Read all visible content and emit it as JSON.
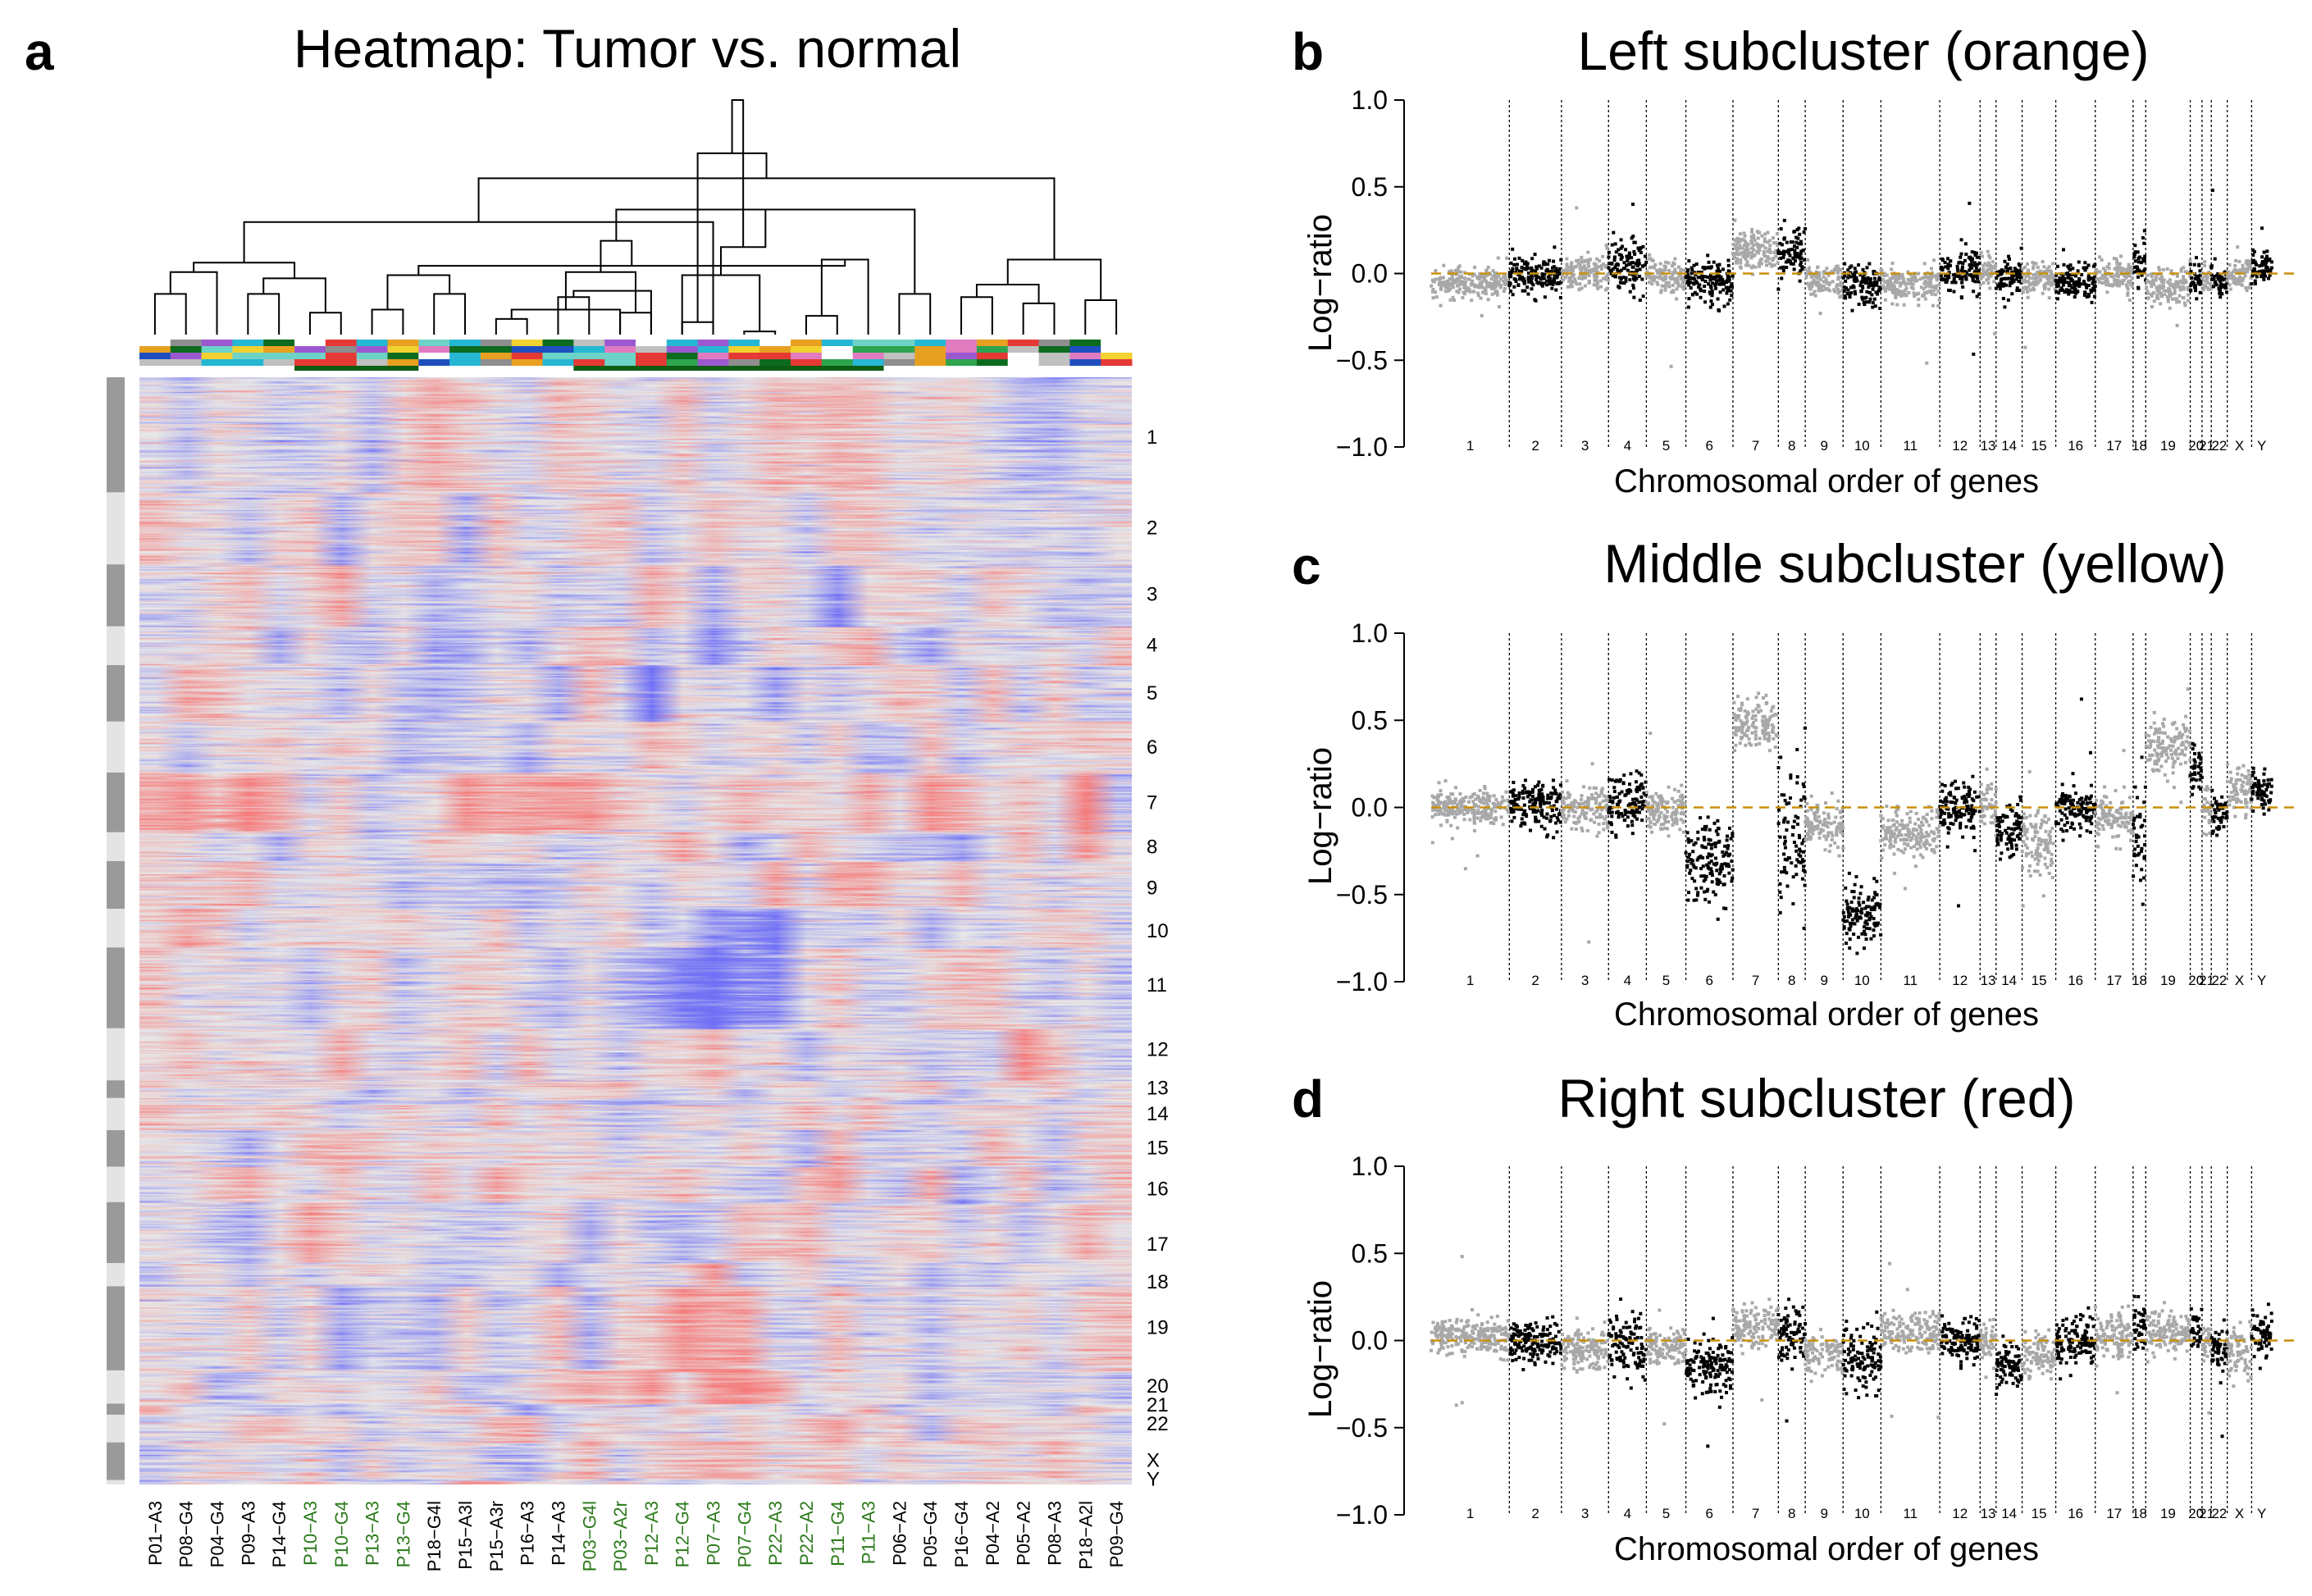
{
  "panels": {
    "a": {
      "letter": "a",
      "title": "Heatmap: Tumor vs. normal"
    },
    "b": {
      "letter": "b",
      "title": "Left subcluster (orange)"
    },
    "c": {
      "letter": "c",
      "title": "Middle subcluster (yellow)"
    },
    "d": {
      "letter": "d",
      "title": "Right subcluster (red)"
    }
  },
  "colors": {
    "gray_point": "#a8a8a8",
    "black_point": "#000000",
    "baseline": "#c8900a",
    "heat_blue": "#6f6fe6",
    "heat_red": "#e07070",
    "heat_mid": "#e8e8e8",
    "green_label": "#2a7a1a"
  },
  "chart_data": [
    {
      "type": "heatmap",
      "panel": "a",
      "title": "Heatmap: Tumor vs. normal",
      "samples": [
        {
          "name": "P01−A3",
          "green": false
        },
        {
          "name": "P08−G4",
          "green": false
        },
        {
          "name": "P04−G4",
          "green": false
        },
        {
          "name": "P09−A3",
          "green": false
        },
        {
          "name": "P14−G4",
          "green": false
        },
        {
          "name": "P10−A3",
          "green": true
        },
        {
          "name": "P10−G4",
          "green": true
        },
        {
          "name": "P13−A3",
          "green": true
        },
        {
          "name": "P13−G4",
          "green": true
        },
        {
          "name": "P18−G4l",
          "green": false
        },
        {
          "name": "P15−A3l",
          "green": false
        },
        {
          "name": "P15−A3r",
          "green": false
        },
        {
          "name": "P16−A3",
          "green": false
        },
        {
          "name": "P14−A3",
          "green": false
        },
        {
          "name": "P03−G4l",
          "green": true
        },
        {
          "name": "P03−A2r",
          "green": true
        },
        {
          "name": "P12−A3",
          "green": true
        },
        {
          "name": "P12−G4",
          "green": true
        },
        {
          "name": "P07−A3",
          "green": true
        },
        {
          "name": "P07−G4",
          "green": true
        },
        {
          "name": "P22−A3",
          "green": true
        },
        {
          "name": "P22−A2",
          "green": true
        },
        {
          "name": "P11−G4",
          "green": true
        },
        {
          "name": "P11−A3",
          "green": true
        },
        {
          "name": "P06−A2",
          "green": false
        },
        {
          "name": "P05−G4",
          "green": false
        },
        {
          "name": "P16−G4",
          "green": false
        },
        {
          "name": "P04−A2",
          "green": false
        },
        {
          "name": "P05−A2",
          "green": false
        },
        {
          "name": "P08−A3",
          "green": false
        },
        {
          "name": "P18−A2l",
          "green": false
        },
        {
          "name": "P09−G4",
          "green": false
        }
      ],
      "row_chromosome_labels": [
        "1",
        "2",
        "3",
        "4",
        "5",
        "6",
        "7",
        "8",
        "9",
        "10",
        "11",
        "12",
        "13",
        "14",
        "15",
        "16",
        "17",
        "18",
        "19",
        "20",
        "21",
        "22",
        "X",
        "Y"
      ],
      "row_label_fraction": [
        0.054,
        0.136,
        0.196,
        0.242,
        0.285,
        0.334,
        0.384,
        0.424,
        0.461,
        0.5,
        0.549,
        0.607,
        0.642,
        0.665,
        0.696,
        0.733,
        0.783,
        0.817,
        0.858,
        0.911,
        0.928,
        0.945,
        0.978,
        0.995
      ],
      "chromosome_blocks": [
        [
          0.0,
          0.104
        ],
        [
          0.104,
          0.169
        ],
        [
          0.169,
          0.225
        ],
        [
          0.225,
          0.26
        ],
        [
          0.26,
          0.311
        ],
        [
          0.311,
          0.357
        ],
        [
          0.357,
          0.411
        ],
        [
          0.411,
          0.437
        ],
        [
          0.437,
          0.48
        ],
        [
          0.48,
          0.515
        ],
        [
          0.515,
          0.588
        ],
        [
          0.588,
          0.635
        ],
        [
          0.635,
          0.651
        ],
        [
          0.651,
          0.68
        ],
        [
          0.68,
          0.713
        ],
        [
          0.713,
          0.745
        ],
        [
          0.745,
          0.8
        ],
        [
          0.8,
          0.821
        ],
        [
          0.821,
          0.897
        ],
        [
          0.897,
          0.927
        ],
        [
          0.927,
          0.937
        ],
        [
          0.937,
          0.962
        ],
        [
          0.962,
          0.996
        ],
        [
          0.996,
          1.0
        ]
      ],
      "dendrogram_merges": [
        [
          -1,
          -2,
          0.13
        ],
        [
          -4,
          -5,
          0.13
        ],
        [
          -6,
          -7,
          0.07
        ],
        [
          -8,
          -9,
          0.08
        ],
        [
          -10,
          -11,
          0.13
        ],
        [
          -12,
          -13,
          0.05
        ],
        [
          -14,
          -15,
          0.12
        ],
        [
          -16,
          -17,
          0.07
        ],
        [
          -18,
          -19,
          0.04
        ],
        [
          -20,
          -21,
          0.01
        ],
        [
          -22,
          -23,
          0.06
        ],
        [
          -25,
          -26,
          0.13
        ],
        [
          -27,
          -28,
          0.12
        ],
        [
          -29,
          -30,
          0.1
        ],
        [
          -31,
          -32,
          0.11
        ],
        [
          1,
          -3,
          0.2
        ],
        [
          6,
          -16,
          0.08
        ],
        [
          7,
          -17,
          0.14
        ],
        [
          10,
          -18,
          0.19
        ],
        [
          2,
          3,
          0.18
        ],
        [
          4,
          5,
          0.19
        ],
        [
          11,
          -24,
          0.24
        ],
        [
          13,
          14,
          0.16
        ],
        [
          17,
          8,
          0.2
        ],
        [
          20,
          16,
          0.23
        ],
        [
          21,
          22,
          0.22
        ],
        [
          23,
          15,
          0.24
        ],
        [
          25,
          -19,
          0.36
        ],
        [
          26,
          24,
          0.3
        ],
        [
          28,
          27,
          0.5
        ],
        [
          12,
          29,
          0.4
        ],
        [
          30,
          9,
          0.58
        ],
        [
          31,
          19,
          0.28
        ],
        [
          32,
          33,
          0.75
        ]
      ],
      "dendrogram_ymax": 0.75
    },
    {
      "type": "scatter",
      "panel": "b",
      "title": "Left subcluster (orange)",
      "xlabel": "Chromosomal order of genes",
      "ylabel": "Log−ratio",
      "ylim": [
        -1.0,
        1.0
      ],
      "yticks": [
        "−1.0",
        "−0.5",
        "0.0",
        "0.5",
        "1.0"
      ],
      "xlim": [
        0,
        1
      ],
      "chromosome_labels": [
        "1",
        "2",
        "3",
        "4",
        "5",
        "6",
        "7",
        "8",
        "9",
        "10",
        "11",
        "12",
        "13",
        "14",
        "15",
        "16",
        "17",
        "18",
        "19",
        "20",
        "21",
        "22",
        "X",
        "Y"
      ],
      "chromosome_bounds": [
        0,
        0.093,
        0.155,
        0.211,
        0.256,
        0.303,
        0.359,
        0.413,
        0.445,
        0.49,
        0.535,
        0.605,
        0.653,
        0.672,
        0.703,
        0.743,
        0.79,
        0.835,
        0.85,
        0.903,
        0.917,
        0.928,
        0.947,
        0.976,
        1.0
      ],
      "segment_means": [
        -0.05,
        -0.01,
        0.0,
        0.04,
        -0.02,
        -0.05,
        0.13,
        0.12,
        -0.04,
        -0.07,
        -0.06,
        0.02,
        0.02,
        -0.03,
        -0.03,
        -0.05,
        -0.02,
        0.05,
        -0.07,
        -0.03,
        -0.04,
        -0.06,
        0.0,
        0.04
      ],
      "segment_spread": [
        0.04,
        0.05,
        0.05,
        0.07,
        0.05,
        0.07,
        0.06,
        0.09,
        0.05,
        0.06,
        0.05,
        0.06,
        0.05,
        0.05,
        0.05,
        0.05,
        0.05,
        0.06,
        0.05,
        0.05,
        0.05,
        0.05,
        0.05,
        0.06
      ],
      "highlighted_chromosomes": [
        "2",
        "4",
        "6",
        "8",
        "10",
        "12",
        "14",
        "16",
        "18",
        "20",
        "22",
        "Y"
      ],
      "baseline": 0.0
    },
    {
      "type": "scatter",
      "panel": "c",
      "title": "Middle subcluster (yellow)",
      "xlabel": "Chromosomal order of genes",
      "ylabel": "Log−ratio",
      "ylim": [
        -1.0,
        1.0
      ],
      "yticks": [
        "−1.0",
        "−0.5",
        "0.0",
        "0.5",
        "1.0"
      ],
      "xlim": [
        0,
        1
      ],
      "chromosome_labels": [
        "1",
        "2",
        "3",
        "4",
        "5",
        "6",
        "7",
        "8",
        "9",
        "10",
        "11",
        "12",
        "13",
        "14",
        "15",
        "16",
        "17",
        "18",
        "19",
        "20",
        "21",
        "22",
        "X",
        "Y"
      ],
      "chromosome_bounds": [
        0,
        0.093,
        0.155,
        0.211,
        0.256,
        0.303,
        0.359,
        0.413,
        0.445,
        0.49,
        0.535,
        0.605,
        0.653,
        0.672,
        0.703,
        0.743,
        0.79,
        0.835,
        0.85,
        0.903,
        0.917,
        0.928,
        0.947,
        0.976,
        1.0
      ],
      "segment_means": [
        0.0,
        0.02,
        0.0,
        0.04,
        -0.02,
        -0.3,
        0.48,
        -0.15,
        -0.1,
        -0.62,
        -0.15,
        -0.01,
        0.01,
        -0.12,
        -0.2,
        -0.02,
        -0.06,
        -0.2,
        0.35,
        0.2,
        0.0,
        -0.03,
        0.1,
        0.1
      ],
      "segment_spread": [
        0.05,
        0.07,
        0.06,
        0.08,
        0.06,
        0.12,
        0.07,
        0.22,
        0.06,
        0.08,
        0.07,
        0.08,
        0.07,
        0.07,
        0.12,
        0.06,
        0.07,
        0.15,
        0.08,
        0.08,
        0.06,
        0.06,
        0.06,
        0.06
      ],
      "highlighted_chromosomes": [
        "2",
        "4",
        "6",
        "8",
        "10",
        "12",
        "14",
        "16",
        "18",
        "20",
        "22",
        "Y"
      ],
      "baseline": 0.0
    },
    {
      "type": "scatter",
      "panel": "d",
      "title": "Right subcluster (red)",
      "xlabel": "Chromosomal order of genes",
      "ylabel": "Log−ratio",
      "ylim": [
        -1.0,
        1.0
      ],
      "yticks": [
        "−1.0",
        "−0.5",
        "0.0",
        "0.5",
        "1.0"
      ],
      "xlim": [
        0,
        1
      ],
      "chromosome_labels": [
        "1",
        "2",
        "3",
        "4",
        "5",
        "6",
        "7",
        "8",
        "9",
        "10",
        "11",
        "12",
        "13",
        "14",
        "15",
        "16",
        "17",
        "18",
        "19",
        "20",
        "21",
        "22",
        "X",
        "Y"
      ],
      "chromosome_bounds": [
        0,
        0.093,
        0.155,
        0.211,
        0.256,
        0.303,
        0.359,
        0.413,
        0.445,
        0.49,
        0.535,
        0.605,
        0.653,
        0.672,
        0.703,
        0.743,
        0.79,
        0.835,
        0.85,
        0.903,
        0.917,
        0.928,
        0.947,
        0.976,
        1.0
      ],
      "segment_means": [
        0.03,
        0.0,
        -0.05,
        -0.05,
        -0.04,
        -0.15,
        0.08,
        0.03,
        -0.08,
        -0.1,
        0.05,
        0.0,
        0.0,
        -0.15,
        -0.08,
        0.0,
        0.03,
        0.08,
        0.04,
        0.05,
        0.0,
        -0.05,
        -0.05,
        0.05
      ],
      "segment_spread": [
        0.05,
        0.06,
        0.06,
        0.1,
        0.05,
        0.08,
        0.06,
        0.1,
        0.06,
        0.1,
        0.06,
        0.06,
        0.05,
        0.07,
        0.06,
        0.06,
        0.06,
        0.06,
        0.06,
        0.06,
        0.05,
        0.06,
        0.08,
        0.06
      ],
      "highlighted_chromosomes": [
        "2",
        "4",
        "6",
        "8",
        "10",
        "12",
        "14",
        "16",
        "18",
        "20",
        "22",
        "Y"
      ],
      "baseline": 0.0
    }
  ]
}
